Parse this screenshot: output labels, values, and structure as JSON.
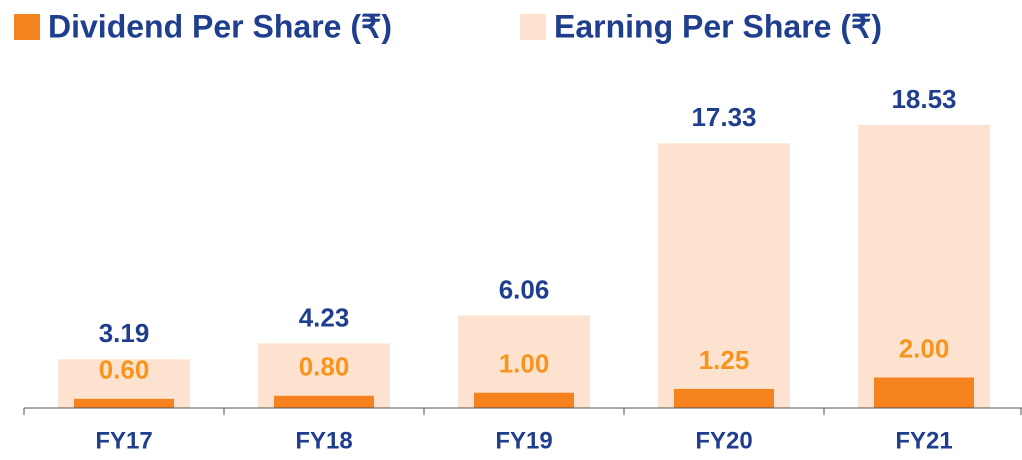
{
  "chart_data": {
    "type": "bar",
    "categories": [
      "FY17",
      "FY18",
      "FY19",
      "FY20",
      "FY21"
    ],
    "series": [
      {
        "name": "Dividend Per Share (₹)",
        "color": "#f5821f",
        "values": [
          0.6,
          0.8,
          1.0,
          1.25,
          2.0
        ],
        "value_labels": [
          "0.60",
          "0.80",
          "1.00",
          "1.25",
          "2.00"
        ]
      },
      {
        "name": "Earning Per Share (₹)",
        "color": "#fde3cf",
        "values": [
          3.19,
          4.23,
          6.06,
          17.33,
          18.53
        ]
      }
    ]
  }
}
